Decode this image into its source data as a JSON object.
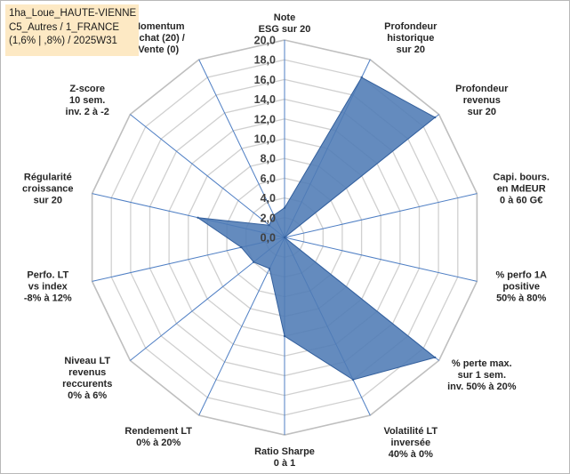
{
  "header": {
    "line1": "1ha_Loue_HAUTE-VIENNE",
    "line2": "C5_Autres / 1_FRANCE",
    "line3": "(1,6% | ,8%) / 2025W31"
  },
  "colors": {
    "fill": "#4f7bb5",
    "outline": "#34609d",
    "grid": "#d0d0d0",
    "spoke": "#4f7fc4",
    "header_bg": "#fde9c4"
  },
  "chart_data": {
    "type": "radar",
    "title": "",
    "range": [
      0,
      20
    ],
    "tick_step": 2,
    "tick_labels": [
      "0,0",
      "2,0",
      "4,0",
      "6,0",
      "8,0",
      "10,0",
      "12,0",
      "14,0",
      "16,0",
      "18,0",
      "20,0"
    ],
    "axes": [
      [
        "Note",
        "ESG sur 20"
      ],
      [
        "Profondeur",
        "historique",
        "sur 20"
      ],
      [
        "Profondeur",
        "revenus",
        "sur 20"
      ],
      [
        "Capi. bours.",
        "en MdEUR",
        "0 à 60 G€"
      ],
      [
        "% perfo 1A",
        "positive",
        "50% à 80%"
      ],
      [
        "% perte max.",
        "sur 1 sem.",
        "inv. 50% à 20%"
      ],
      [
        "Volatilité LT",
        "inversée",
        "40% à 0%"
      ],
      [
        "Ratio Sharpe",
        "0 à 1"
      ],
      [
        "Rendement LT",
        "0% à 20%"
      ],
      [
        "Niveau LT",
        "revenus",
        "reccurents",
        "0% à 6%"
      ],
      [
        "Perfo. LT",
        "vs index",
        "-8% à 12%"
      ],
      [
        "Régularité",
        "croissance",
        "sur 20"
      ],
      [
        "Z-score",
        "10 sem.",
        "inv. 2 à -2"
      ],
      [
        "Momentum",
        "Achat (20) /",
        "Vente (0)"
      ]
    ],
    "values": [
      3.0,
      18.0,
      19.5,
      0.0,
      0.0,
      19.5,
      16.0,
      10.0,
      3.5,
      4.0,
      4.5,
      9.0,
      2.0,
      2.5
    ]
  }
}
